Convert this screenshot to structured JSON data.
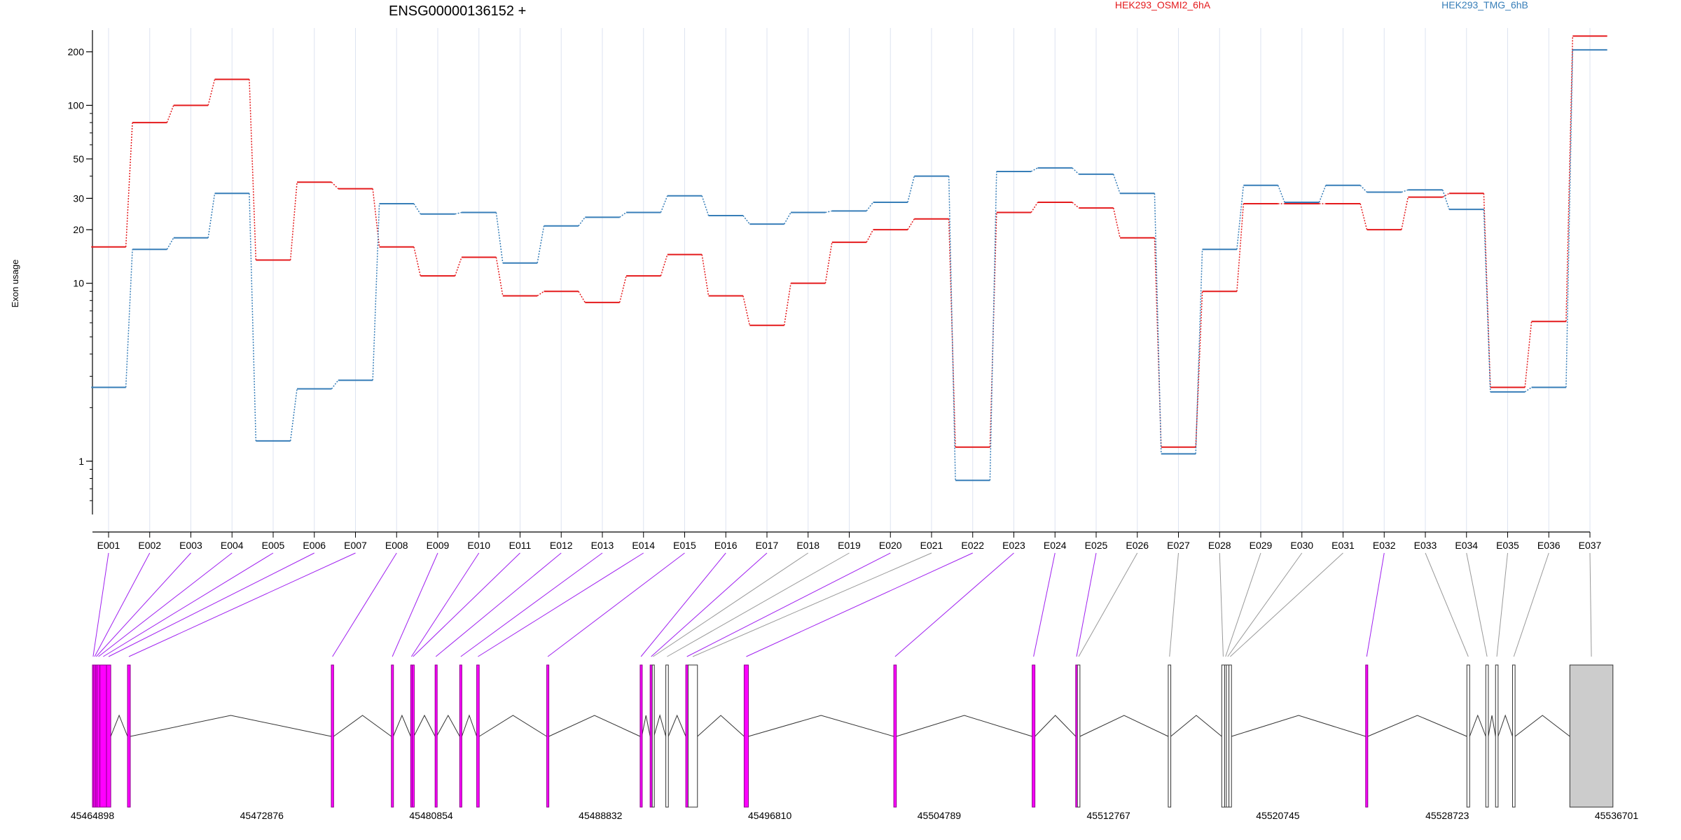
{
  "colors": {
    "condition_a": "#e41a1c",
    "condition_b": "#377eb8",
    "significant_exon": "#ff00ff",
    "significant_stroke": "#8b008b",
    "nonsignificant_exon": "#ffffff",
    "last_exon_fill": "#cccccc",
    "connector_significant": "#a020f0",
    "connector_nonsignificant": "#999999",
    "gridline": "#dde3f0"
  },
  "chart_data": {
    "type": "line",
    "title": "ENSG00000136152 +",
    "ylabel": "Exon usage",
    "xlabel": "",
    "y_scale": "log",
    "ylim": [
      0.4,
      260
    ],
    "y_ticks": [
      {
        "value": 1,
        "label": "1"
      },
      {
        "value": 10,
        "label": "10"
      },
      {
        "value": 20,
        "label": "20"
      },
      {
        "value": 30,
        "label": "30"
      },
      {
        "value": 50,
        "label": "50"
      },
      {
        "value": 100,
        "label": "100"
      },
      {
        "value": 200,
        "label": "200"
      }
    ],
    "categories": [
      "E001",
      "E002",
      "E003",
      "E004",
      "E005",
      "E006",
      "E007",
      "E008",
      "E009",
      "E010",
      "E011",
      "E012",
      "E013",
      "E014",
      "E015",
      "E016",
      "E017",
      "E018",
      "E019",
      "E020",
      "E021",
      "E022",
      "E023",
      "E024",
      "E025",
      "E026",
      "E027",
      "E028",
      "E029",
      "E030",
      "E031",
      "E032",
      "E033",
      "E034",
      "E035",
      "E036",
      "E037"
    ],
    "series": [
      {
        "name": "HEK293_OSMI2_6hA",
        "values": [
          16,
          80,
          100,
          140,
          13.5,
          37,
          34,
          16,
          11,
          14,
          8.5,
          9,
          7.8,
          11,
          14.5,
          8.5,
          5.8,
          10,
          17,
          20,
          23,
          1.2,
          25,
          28.5,
          26.5,
          18,
          1.2,
          9,
          28,
          28,
          28,
          20,
          30.5,
          32,
          2.6,
          6.1,
          245
        ]
      },
      {
        "name": "HEK293_TMG_6hB",
        "values": [
          2.6,
          15.5,
          18,
          32,
          1.3,
          2.55,
          2.85,
          28,
          24.5,
          25,
          13,
          21,
          23.5,
          25,
          31,
          24,
          21.5,
          25,
          25.5,
          28.5,
          40,
          0.78,
          42.5,
          44.5,
          41,
          32,
          1.1,
          15.5,
          35.5,
          28.5,
          35.5,
          32.5,
          33.5,
          26,
          2.45,
          2.6,
          205
        ]
      }
    ],
    "grid": true,
    "legend_placement": "top",
    "gene_model": {
      "coordinate_ticks": [
        {
          "value": 45464898,
          "label": "45464898"
        },
        {
          "value": 45472876,
          "label": "45472876"
        },
        {
          "value": 45480854,
          "label": "45480854"
        },
        {
          "value": 45488832,
          "label": "45488832"
        },
        {
          "value": 45496810,
          "label": "45496810"
        },
        {
          "value": 45504789,
          "label": "45504789"
        },
        {
          "value": 45512767,
          "label": "45512767"
        },
        {
          "value": 45520745,
          "label": "45520745"
        },
        {
          "value": 45528723,
          "label": "45528723"
        },
        {
          "value": 45536701,
          "label": "45536701"
        }
      ],
      "exons": [
        {
          "id": "E001",
          "start": 45464898,
          "end": 45464960,
          "significant": true
        },
        {
          "id": "E002",
          "start": 45464960,
          "end": 45465040,
          "significant": true
        },
        {
          "id": "E003",
          "start": 45465040,
          "end": 45465110,
          "significant": true
        },
        {
          "id": "E004",
          "start": 45465110,
          "end": 45465250,
          "significant": true
        },
        {
          "id": "E005",
          "start": 45465250,
          "end": 45465560,
          "significant": true
        },
        {
          "id": "E006",
          "start": 45465560,
          "end": 45465760,
          "significant": true
        },
        {
          "id": "E007",
          "start": 45466550,
          "end": 45466680,
          "significant": true
        },
        {
          "id": "E008",
          "start": 45476150,
          "end": 45476260,
          "significant": true
        },
        {
          "id": "E009",
          "start": 45478980,
          "end": 45479070,
          "significant": true
        },
        {
          "id": "E010",
          "start": 45479890,
          "end": 45479960,
          "significant": true
        },
        {
          "id": "E011",
          "start": 45479960,
          "end": 45480040,
          "significant": true
        },
        {
          "id": "E012",
          "start": 45481040,
          "end": 45481110,
          "significant": true
        },
        {
          "id": "E013",
          "start": 45482200,
          "end": 45482300,
          "significant": true
        },
        {
          "id": "E014",
          "start": 45483000,
          "end": 45483120,
          "significant": true
        },
        {
          "id": "E015",
          "start": 45486300,
          "end": 45486400,
          "significant": true
        },
        {
          "id": "E016",
          "start": 45490700,
          "end": 45490780,
          "significant": true
        },
        {
          "id": "E017",
          "start": 45491170,
          "end": 45491270,
          "significant": true
        },
        {
          "id": "E018",
          "start": 45491270,
          "end": 45491350,
          "significant": false
        },
        {
          "id": "E019",
          "start": 45491910,
          "end": 45492030,
          "significant": false
        },
        {
          "id": "E020",
          "start": 45492850,
          "end": 45492960,
          "significant": true
        },
        {
          "id": "E021",
          "start": 45492960,
          "end": 45493400,
          "significant": false
        },
        {
          "id": "E022",
          "start": 45495600,
          "end": 45495800,
          "significant": true
        },
        {
          "id": "E023",
          "start": 45502650,
          "end": 45502770,
          "significant": true
        },
        {
          "id": "E024",
          "start": 45509170,
          "end": 45509300,
          "significant": true
        },
        {
          "id": "E025",
          "start": 45511220,
          "end": 45511300,
          "significant": true
        },
        {
          "id": "E026",
          "start": 45511300,
          "end": 45511420,
          "significant": false
        },
        {
          "id": "E027",
          "start": 45515580,
          "end": 45515700,
          "significant": false
        },
        {
          "id": "E028",
          "start": 45518100,
          "end": 45518240,
          "significant": false
        },
        {
          "id": "E029",
          "start": 45518240,
          "end": 45518320,
          "significant": false
        },
        {
          "id": "E030",
          "start": 45518320,
          "end": 45518440,
          "significant": false
        },
        {
          "id": "E031",
          "start": 45518440,
          "end": 45518560,
          "significant": false
        },
        {
          "id": "E032",
          "start": 45524880,
          "end": 45524980,
          "significant": true
        },
        {
          "id": "E033",
          "start": 45529650,
          "end": 45529780,
          "significant": false
        },
        {
          "id": "E034",
          "start": 45530540,
          "end": 45530660,
          "significant": false
        },
        {
          "id": "E035",
          "start": 45531000,
          "end": 45531120,
          "significant": false
        },
        {
          "id": "E036",
          "start": 45531800,
          "end": 45531920,
          "significant": false
        },
        {
          "id": "E037",
          "start": 45534500,
          "end": 45536530,
          "significant": false
        }
      ]
    }
  }
}
